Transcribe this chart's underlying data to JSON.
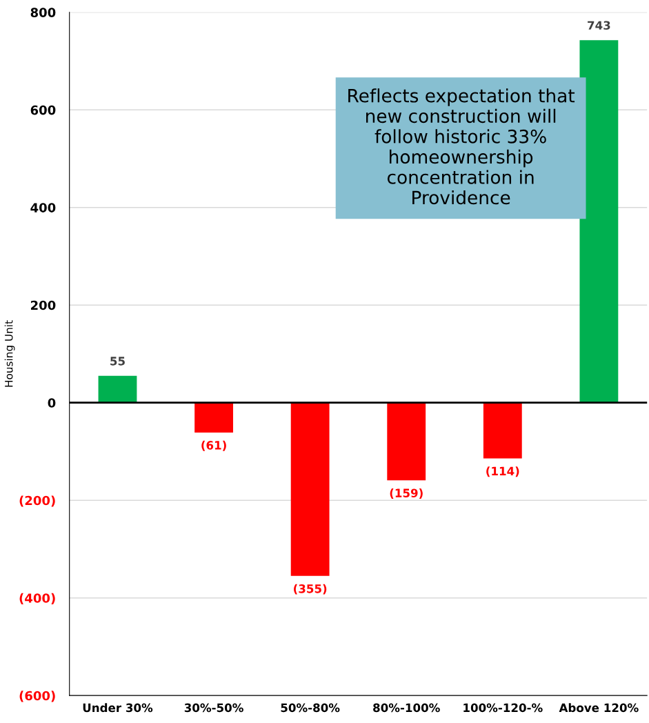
{
  "chart_data": {
    "type": "bar",
    "ylabel": "Housing Unit",
    "categories": [
      "Under 30%",
      "30%-50%",
      "50%-80%",
      "80%-100%",
      "100%-120-%",
      "Above 120%"
    ],
    "values": [
      55,
      -61,
      -355,
      -159,
      -114,
      743
    ],
    "colors": [
      "#00b050",
      "#ff0000",
      "#ff0000",
      "#ff0000",
      "#ff0000",
      "#00b050"
    ],
    "value_labels": [
      "55",
      "(61)",
      "(355)",
      "(159)",
      "(114)",
      "743"
    ],
    "ylim": [
      -600,
      800
    ],
    "yticks": [
      {
        "value": -600,
        "label": "(600)"
      },
      {
        "value": -400,
        "label": "(400)"
      },
      {
        "value": -200,
        "label": "(200)"
      },
      0,
      200,
      400,
      600,
      800
    ],
    "grid": "y",
    "annotations": [
      "Reflects expectation that new construction will follow historic 33% homeownership concentration in Providence"
    ]
  }
}
